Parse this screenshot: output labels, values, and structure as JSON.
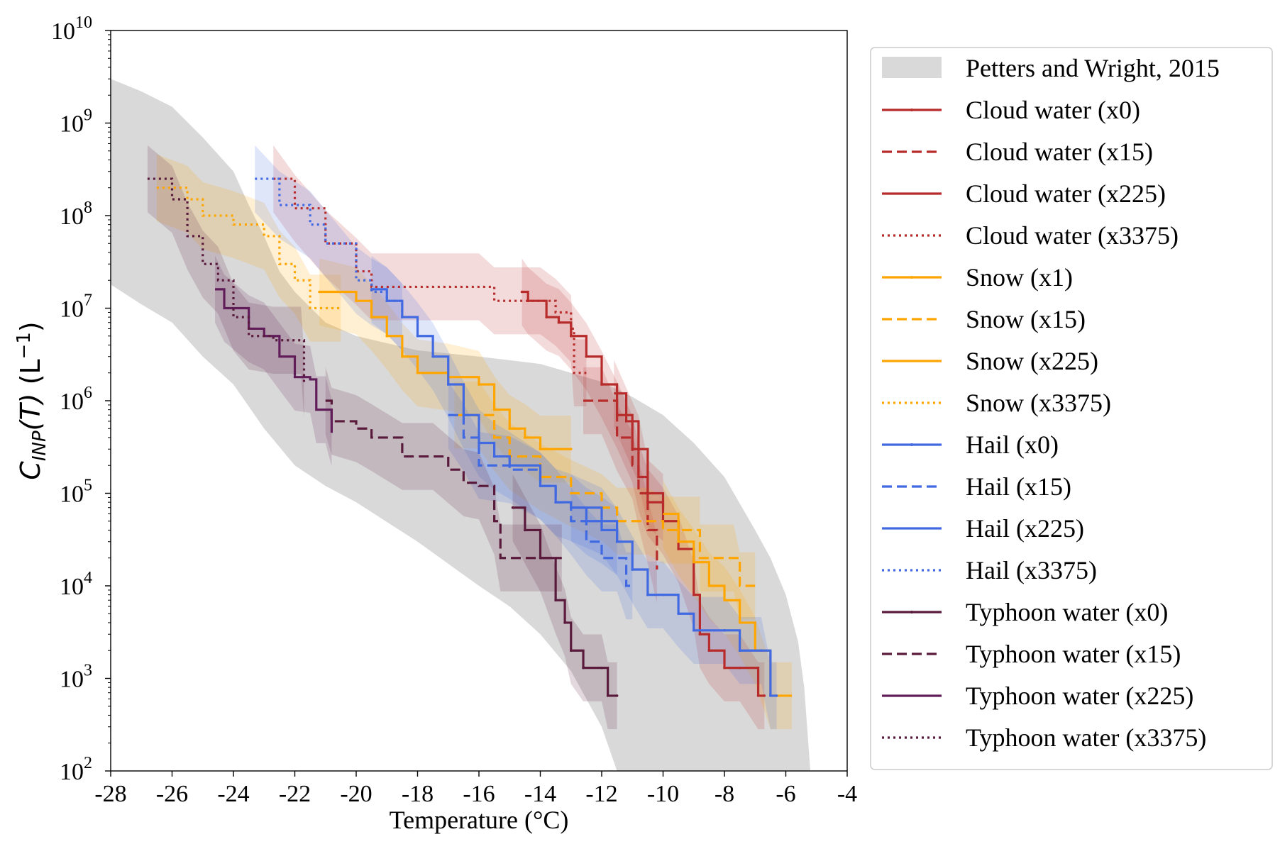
{
  "chart_data": {
    "type": "line",
    "title": "",
    "xlabel": "Temperature (°C)",
    "ylabel_main": "C",
    "ylabel_sub": "INP",
    "ylabel_arg": "(T)",
    "ylabel_unit": " (L",
    "ylabel_unit_sup": "−1",
    "ylabel_unit_close": ")",
    "xlim": [
      -28,
      -4
    ],
    "ylim": [
      100,
      10000000000
    ],
    "yscale": "log",
    "xticks": [
      "-28",
      "-26",
      "-24",
      "-22",
      "-20",
      "-18",
      "-16",
      "-14",
      "-12",
      "-10",
      "-8",
      "-6",
      "-4"
    ],
    "yticks": [
      {
        "base": "10",
        "exp": "2"
      },
      {
        "base": "10",
        "exp": "3"
      },
      {
        "base": "10",
        "exp": "4"
      },
      {
        "base": "10",
        "exp": "5"
      },
      {
        "base": "10",
        "exp": "6"
      },
      {
        "base": "10",
        "exp": "7"
      },
      {
        "base": "10",
        "exp": "8"
      },
      {
        "base": "10",
        "exp": "9"
      },
      {
        "base": "10",
        "exp": "10"
      }
    ],
    "grid": false,
    "legend_position": "outside-right",
    "reference_band": {
      "name": "Petters and Wright, 2015",
      "color": "#d9d9d9",
      "upper": [
        [
          -28,
          3000000000.0
        ],
        [
          -27,
          2200000000.0
        ],
        [
          -26,
          1500000000.0
        ],
        [
          -25,
          700000000.0
        ],
        [
          -24,
          300000000.0
        ],
        [
          -23.5,
          130000000.0
        ],
        [
          -23,
          60000000.0
        ],
        [
          -22.5,
          25000000.0
        ],
        [
          -22,
          15000000.0
        ],
        [
          -21,
          7000000.0
        ],
        [
          -20,
          5000000.0
        ],
        [
          -18,
          3500000.0
        ],
        [
          -16,
          3000000.0
        ],
        [
          -14,
          2500000.0
        ],
        [
          -12,
          1600000.0
        ],
        [
          -11,
          1100000.0
        ],
        [
          -10,
          700000.0
        ],
        [
          -9,
          350000.0
        ],
        [
          -8,
          150000.0
        ],
        [
          -7,
          40000.0
        ],
        [
          -6.5,
          20000.0
        ],
        [
          -6,
          8000.0
        ],
        [
          -5.6,
          2500.0
        ],
        [
          -5.4,
          800.0
        ],
        [
          -5.2,
          100
        ]
      ],
      "lower": [
        [
          -28,
          18000000.0
        ],
        [
          -27,
          11000000.0
        ],
        [
          -26,
          7000000.0
        ],
        [
          -25,
          3000000.0
        ],
        [
          -24,
          1500000.0
        ],
        [
          -23,
          500000.0
        ],
        [
          -22,
          200000.0
        ],
        [
          -21,
          120000.0
        ],
        [
          -20,
          80000.0
        ],
        [
          -18,
          30000.0
        ],
        [
          -16,
          10000.0
        ],
        [
          -15,
          6000.0
        ],
        [
          -14,
          3000.0
        ],
        [
          -13,
          1200.0
        ],
        [
          -12.5,
          600.0
        ],
        [
          -12,
          300.0
        ],
        [
          -11.5,
          100
        ]
      ]
    },
    "series": [
      {
        "name": "Cloud water (x0)",
        "color": "#b82b2b",
        "dash": "solid",
        "marker": true,
        "points": [
          [
            -14.6,
            15000000.0
          ],
          [
            -14.4,
            12000000.0
          ],
          [
            -13.8,
            8000000.0
          ],
          [
            -13.4,
            7000000.0
          ],
          [
            -13,
            5000000.0
          ],
          [
            -12.5,
            3000000.0
          ],
          [
            -12,
            1500000.0
          ],
          [
            -11.5,
            700000.0
          ],
          [
            -11,
            300000.0
          ],
          [
            -10.8,
            150000.0
          ],
          [
            -10.5,
            80000.0
          ],
          [
            -10,
            50000.0
          ],
          [
            -9.5,
            25000.0
          ],
          [
            -9,
            8000.0
          ],
          [
            -8.8,
            3000.0
          ],
          [
            -8.5,
            2000.0
          ],
          [
            -8,
            1300.0
          ],
          [
            -7.5,
            1300.0
          ],
          [
            -6.9,
            650
          ],
          [
            -6.7,
            650
          ]
        ]
      },
      {
        "name": "Cloud water (x15)",
        "color": "#b82b2b",
        "dash": "dashed",
        "marker": false,
        "points": [
          [
            -12.6,
            1000000.0
          ],
          [
            -12,
            1000000.0
          ],
          [
            -11.5,
            400000.0
          ],
          [
            -11,
            200000.0
          ],
          [
            -10.8,
            100000.0
          ],
          [
            -10.5,
            40000.0
          ],
          [
            -10.2,
            15000.0
          ]
        ]
      },
      {
        "name": "Cloud water (x225)",
        "color": "#b82b2b",
        "dash": "solid",
        "marker": false,
        "points": [
          [
            -11.6,
            1200000.0
          ],
          [
            -11.2,
            600000.0
          ],
          [
            -10.8,
            300000.0
          ],
          [
            -10.5,
            100000.0
          ],
          [
            -10,
            70000.0
          ]
        ]
      },
      {
        "name": "Cloud water (x3375)",
        "color": "#b82b2b",
        "dash": "dotted",
        "marker": false,
        "points": [
          [
            -22.7,
            250000000.0
          ],
          [
            -22,
            120000000.0
          ],
          [
            -21,
            50000000.0
          ],
          [
            -20,
            25000000.0
          ],
          [
            -19.5,
            17000000.0
          ],
          [
            -16,
            17000000.0
          ],
          [
            -15.5,
            12000000.0
          ],
          [
            -14,
            12000000.0
          ],
          [
            -13.5,
            9000000.0
          ],
          [
            -13,
            6000000.0
          ],
          [
            -12.9,
            2000000.0
          ],
          [
            -12.5,
            2000000.0
          ]
        ]
      },
      {
        "name": "Snow (x1)",
        "color": "#ffa500",
        "dash": "solid",
        "marker": true,
        "points": [
          [
            -21.2,
            15000000.0
          ],
          [
            -20,
            12000000.0
          ],
          [
            -19.5,
            8000000.0
          ],
          [
            -19,
            5000000.0
          ],
          [
            -18.5,
            3000000.0
          ],
          [
            -18,
            2000000.0
          ],
          [
            -17,
            1800000.0
          ],
          [
            -16,
            1500000.0
          ],
          [
            -15.5,
            800000.0
          ],
          [
            -15,
            500000.0
          ],
          [
            -14.5,
            400000.0
          ],
          [
            -14,
            300000.0
          ],
          [
            -13,
            300000.0
          ]
        ]
      },
      {
        "name": "Snow (x15)",
        "color": "#ffa500",
        "dash": "dashed",
        "marker": false,
        "points": [
          [
            -16.8,
            700000.0
          ],
          [
            -16,
            700000.0
          ],
          [
            -15.5,
            400000.0
          ],
          [
            -15,
            250000.0
          ],
          [
            -14,
            150000.0
          ],
          [
            -13,
            100000.0
          ],
          [
            -12,
            70000.0
          ],
          [
            -11.5,
            50000.0
          ],
          [
            -10.5,
            50000.0
          ],
          [
            -10,
            40000.0
          ],
          [
            -8.8,
            40000.0
          ],
          [
            -8.8,
            20000.0
          ],
          [
            -7.7,
            20000.0
          ],
          [
            -7.5,
            10000.0
          ],
          [
            -7,
            10000.0
          ]
        ]
      },
      {
        "name": "Snow (x225)",
        "color": "#ffa500",
        "dash": "solid",
        "marker": false,
        "points": [
          [
            -10,
            60000.0
          ],
          [
            -9.5,
            30000.0
          ],
          [
            -9,
            18000.0
          ],
          [
            -8.5,
            10000.0
          ],
          [
            -8,
            7000.0
          ],
          [
            -7.5,
            4000.0
          ],
          [
            -7,
            2000.0
          ],
          [
            -6.5,
            650
          ],
          [
            -5.8,
            650
          ]
        ]
      },
      {
        "name": "Snow (x3375)",
        "color": "#ffa500",
        "dash": "dotted",
        "marker": false,
        "points": [
          [
            -26.5,
            200000000.0
          ],
          [
            -25.5,
            150000000.0
          ],
          [
            -25,
            100000000.0
          ],
          [
            -24,
            80000000.0
          ],
          [
            -23,
            60000000.0
          ],
          [
            -22.5,
            30000000.0
          ],
          [
            -22,
            20000000.0
          ],
          [
            -21.5,
            10000000.0
          ],
          [
            -20.5,
            10000000.0
          ]
        ]
      },
      {
        "name": "Hail (x0)",
        "color": "#4169e1",
        "dash": "solid",
        "marker": true,
        "points": [
          [
            -19.5,
            16000000.0
          ],
          [
            -19,
            12000000.0
          ],
          [
            -18.5,
            8000000.0
          ],
          [
            -18,
            5000000.0
          ],
          [
            -17.5,
            3000000.0
          ],
          [
            -17,
            1500000.0
          ],
          [
            -16.5,
            700000.0
          ],
          [
            -16,
            350000.0
          ],
          [
            -15.5,
            250000.0
          ],
          [
            -15,
            200000.0
          ],
          [
            -14,
            120000.0
          ],
          [
            -13.5,
            80000.0
          ],
          [
            -13,
            70000.0
          ],
          [
            -12,
            50000.0
          ],
          [
            -11.5,
            30000.0
          ],
          [
            -11,
            15000.0
          ],
          [
            -10.5,
            8000.0
          ],
          [
            -10,
            8000.0
          ],
          [
            -9.5,
            5000.0
          ],
          [
            -9,
            3300.0
          ],
          [
            -8,
            3300.0
          ],
          [
            -7.5,
            2000.0
          ],
          [
            -6.8,
            2000.0
          ],
          [
            -6.5,
            650
          ],
          [
            -6.3,
            650
          ]
        ]
      },
      {
        "name": "Hail (x15)",
        "color": "#4169e1",
        "dash": "dashed",
        "marker": false,
        "points": [
          [
            -17,
            700000.0
          ],
          [
            -16.5,
            400000.0
          ],
          [
            -16,
            200000.0
          ],
          [
            -15,
            180000.0
          ],
          [
            -14,
            120000.0
          ],
          [
            -13.5,
            80000.0
          ],
          [
            -13,
            50000.0
          ],
          [
            -12.5,
            30000.0
          ],
          [
            -12,
            20000.0
          ],
          [
            -11.5,
            20000.0
          ],
          [
            -11.2,
            10000.0
          ],
          [
            -11,
            10000.0
          ]
        ]
      },
      {
        "name": "Hail (x225)",
        "color": "#4169e1",
        "dash": "solid",
        "marker": false,
        "points": [
          [
            -13,
            70000.0
          ],
          [
            -12.5,
            50000.0
          ],
          [
            -12,
            40000.0
          ],
          [
            -11.5,
            30000.0
          ]
        ]
      },
      {
        "name": "Hail (x3375)",
        "color": "#4169e1",
        "dash": "dotted",
        "marker": false,
        "points": [
          [
            -23.3,
            250000000.0
          ],
          [
            -22.5,
            130000000.0
          ],
          [
            -21.5,
            80000000.0
          ],
          [
            -21,
            50000000.0
          ],
          [
            -20,
            20000000.0
          ],
          [
            -19.5,
            15000000.0
          ],
          [
            -19,
            12000000.0
          ],
          [
            -18.5,
            8000000.0
          ]
        ]
      },
      {
        "name": "Typhoon water (x0)",
        "color": "#5a1a3c",
        "dash": "solid",
        "marker": true,
        "points": [
          [
            -14.9,
            70000.0
          ],
          [
            -14.5,
            40000.0
          ],
          [
            -14,
            20000.0
          ],
          [
            -13.5,
            7000.0
          ],
          [
            -13.2,
            4000.0
          ],
          [
            -13,
            2000.0
          ],
          [
            -12.6,
            1300.0
          ],
          [
            -12,
            1300.0
          ],
          [
            -11.8,
            650
          ],
          [
            -11.5,
            650
          ]
        ]
      },
      {
        "name": "Typhoon water (x15)",
        "color": "#5a1a3c",
        "dash": "dashed",
        "marker": false,
        "points": [
          [
            -21,
            1000000.0
          ],
          [
            -20.8,
            600000.0
          ],
          [
            -20,
            500000.0
          ],
          [
            -19.5,
            400000.0
          ],
          [
            -18.5,
            250000.0
          ],
          [
            -17.5,
            250000.0
          ],
          [
            -17,
            180000.0
          ],
          [
            -16.5,
            130000.0
          ],
          [
            -16,
            120000.0
          ],
          [
            -15.5,
            50000.0
          ],
          [
            -15.3,
            20000.0
          ],
          [
            -13.3,
            20000.0
          ]
        ]
      },
      {
        "name": "Typhoon water (x225)",
        "color": "#611d5a",
        "dash": "solid",
        "marker": false,
        "points": [
          [
            -24.6,
            16000000.0
          ],
          [
            -24.3,
            10000000.0
          ],
          [
            -23.5,
            6000000.0
          ],
          [
            -23,
            5000000.0
          ],
          [
            -22.5,
            3000000.0
          ],
          [
            -22,
            1800000.0
          ],
          [
            -21.5,
            1700000.0
          ],
          [
            -21.3,
            800000.0
          ],
          [
            -21,
            800000.0
          ],
          [
            -20.8,
            450000.0
          ]
        ]
      },
      {
        "name": "Typhoon water (x3375)",
        "color": "#5a1a3c",
        "dash": "dotted",
        "marker": false,
        "points": [
          [
            -26.8,
            250000000.0
          ],
          [
            -26,
            150000000.0
          ],
          [
            -25.5,
            60000000.0
          ],
          [
            -25,
            30000000.0
          ],
          [
            -24.5,
            20000000.0
          ],
          [
            -24,
            8000000.0
          ],
          [
            -23.5,
            5000000.0
          ],
          [
            -22.7,
            4500000.0
          ],
          [
            -21.8,
            4500000.0
          ],
          [
            -21.7,
            1500000.0
          ]
        ]
      }
    ]
  }
}
